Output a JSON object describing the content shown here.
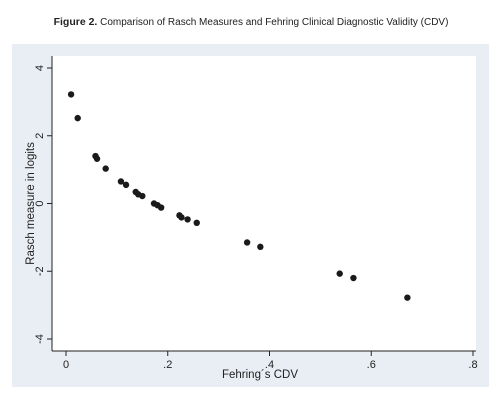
{
  "figure": {
    "caption_lead": "Figure 2.",
    "caption_text": "Comparison of Rasch Measures and Fehring Clinical Diagnostic Validity (CDV)"
  },
  "chart_data": {
    "type": "scatter",
    "title": "",
    "xlabel": "Fehring´s CDV",
    "ylabel": "Rasch measure in logits",
    "xlim": [
      0,
      0.8
    ],
    "ylim": [
      -4,
      4
    ],
    "x_ticks": [
      0,
      0.2,
      0.4,
      0.6,
      0.8
    ],
    "x_tick_labels": [
      "0",
      ".2",
      ".4",
      ".6",
      ".8"
    ],
    "y_ticks": [
      -4,
      -2,
      0,
      2,
      4
    ],
    "y_tick_labels": [
      "-4",
      "-2",
      "0",
      "2",
      "4"
    ],
    "grid": false,
    "legend": "none",
    "marker_color": "#1a1a1a",
    "background_color": "#e9eef4",
    "plot_background_color": "#ffffff",
    "points": [
      {
        "x": 0.01,
        "y": 3.22
      },
      {
        "x": 0.023,
        "y": 2.52
      },
      {
        "x": 0.058,
        "y": 1.4
      },
      {
        "x": 0.061,
        "y": 1.32
      },
      {
        "x": 0.078,
        "y": 1.03
      },
      {
        "x": 0.108,
        "y": 0.65
      },
      {
        "x": 0.118,
        "y": 0.55
      },
      {
        "x": 0.137,
        "y": 0.34
      },
      {
        "x": 0.142,
        "y": 0.27
      },
      {
        "x": 0.15,
        "y": 0.22
      },
      {
        "x": 0.173,
        "y": 0.0
      },
      {
        "x": 0.18,
        "y": -0.05
      },
      {
        "x": 0.187,
        "y": -0.12
      },
      {
        "x": 0.223,
        "y": -0.35
      },
      {
        "x": 0.227,
        "y": -0.41
      },
      {
        "x": 0.239,
        "y": -0.47
      },
      {
        "x": 0.257,
        "y": -0.57
      },
      {
        "x": 0.356,
        "y": -1.15
      },
      {
        "x": 0.382,
        "y": -1.28
      },
      {
        "x": 0.538,
        "y": -2.07
      },
      {
        "x": 0.565,
        "y": -2.2
      },
      {
        "x": 0.671,
        "y": -2.78
      }
    ]
  }
}
